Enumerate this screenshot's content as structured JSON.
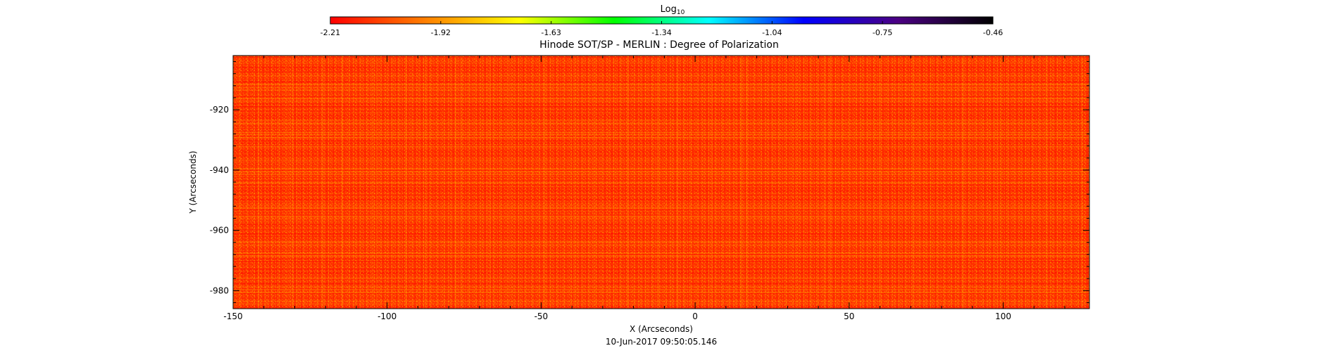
{
  "chart_data": {
    "type": "heatmap",
    "title": "Hinode SOT/SP - MERLIN : Degree of Polarization",
    "xlabel": "X (Arcseconds)",
    "ylabel": "Y (Arcseconds)",
    "timestamp": "10-Jun-2017 09:50:05.146",
    "xlim": [
      -150,
      128
    ],
    "ylim": [
      -986,
      -902
    ],
    "x_ticks": [
      -150,
      -100,
      -50,
      0,
      50,
      100
    ],
    "y_ticks": [
      -920,
      -940,
      -960,
      -980
    ],
    "colorbar": {
      "label": "Log",
      "label_subscript": "10",
      "range": [
        -2.21,
        -0.46
      ],
      "tick_labels": [
        "-2.21",
        "-1.92",
        "-1.63",
        "-1.34",
        "-1.04",
        "-0.75",
        "-0.46"
      ],
      "colors": [
        "#ff0000",
        "#ff7f00",
        "#ffff00",
        "#00ff00",
        "#00ffff",
        "#0000ff",
        "#4b0082",
        "#000000"
      ]
    },
    "image_colors": {
      "base": "#ff3300",
      "low": "#ff0000",
      "high": "#ffaa00"
    }
  }
}
